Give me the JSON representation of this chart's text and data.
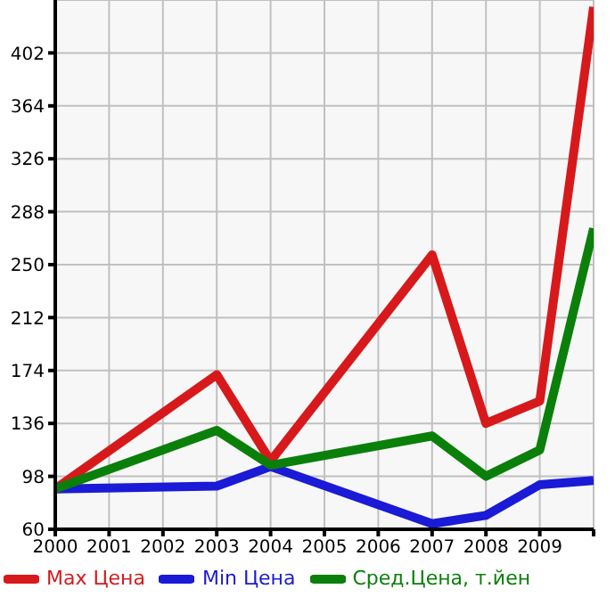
{
  "chart_data": {
    "type": "line",
    "x": [
      2000,
      2003,
      2004,
      2007,
      2008,
      2009,
      2010
    ],
    "series": [
      {
        "name": "Max Цена",
        "color": "#d7191c",
        "values": [
          89,
          171,
          109,
          257,
          136,
          152,
          435
        ]
      },
      {
        "name": "Min Цена",
        "color": "#1a1ad7",
        "values": [
          89,
          91,
          105,
          64,
          70,
          92,
          95
        ]
      },
      {
        "name": "Сред.Цена, т.йен",
        "color": "#0a800a",
        "values": [
          89,
          131,
          106,
          127,
          98,
          117,
          276
        ]
      }
    ],
    "xlim": [
      2000,
      2010
    ],
    "xticks": [
      2000,
      2001,
      2002,
      2003,
      2004,
      2005,
      2006,
      2007,
      2008,
      2009,
      {
        "value": 2010,
        "label": null
      }
    ],
    "ylim": [
      60,
      440
    ],
    "yticks": [
      60,
      98,
      136,
      174,
      212,
      250,
      288,
      326,
      364,
      402
    ],
    "grid": true,
    "legend": "bottom",
    "marker": "none",
    "line_style": "solid"
  }
}
